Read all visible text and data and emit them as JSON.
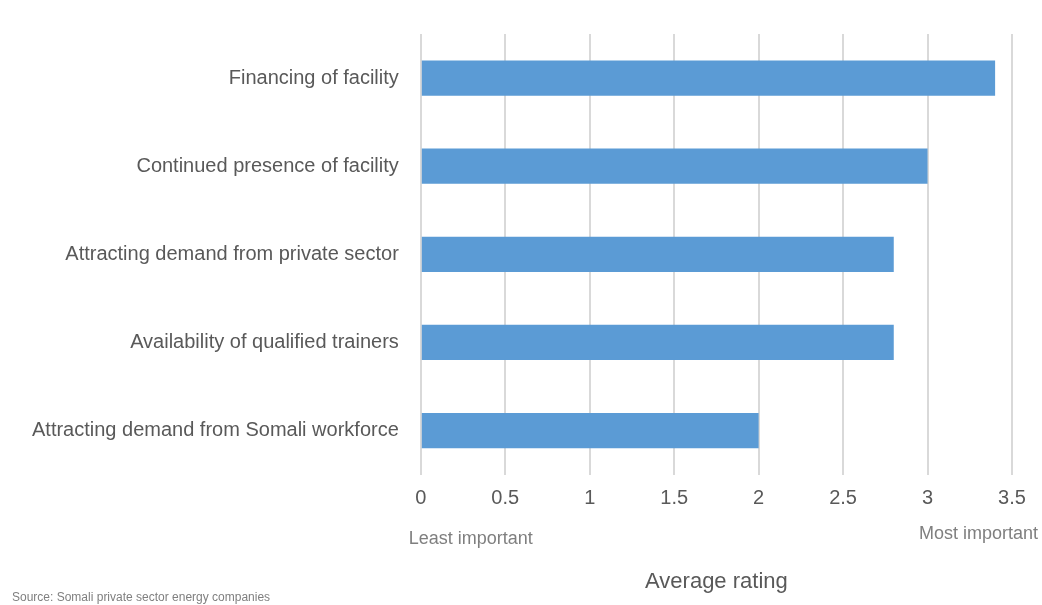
{
  "chart_data": {
    "type": "bar",
    "orientation": "horizontal",
    "categories": [
      "Financing of facility",
      "Continued presence of facility",
      "Attracting demand from private sector",
      "Availability of qualified trainers",
      "Attracting demand from Somali workforce"
    ],
    "values": [
      3.4,
      3.0,
      2.8,
      2.8,
      2.0
    ],
    "color": "#5b9bd5",
    "xlim": [
      0,
      3.5
    ],
    "xticks": [
      0,
      0.5,
      1,
      1.5,
      2,
      2.5,
      3,
      3.5
    ],
    "grid": "x",
    "legend": false,
    "xlabel": "Average rating",
    "annotations": [
      "Least important",
      "Most important",
      "Source: Somali private sector energy companies"
    ]
  }
}
